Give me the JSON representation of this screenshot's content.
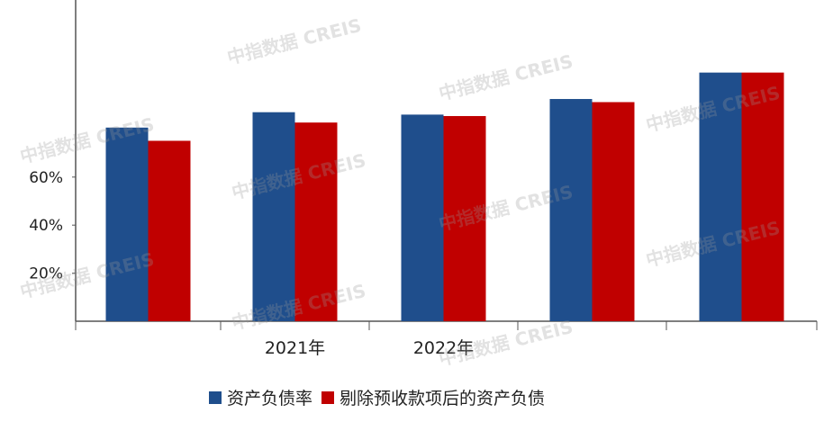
{
  "chart_data": {
    "type": "bar",
    "categories": [
      "",
      "2021年",
      "2022年",
      "",
      ""
    ],
    "series": [
      {
        "name": "资产负债率",
        "color": "#1f4e8c",
        "values": [
          80.6,
          87.0,
          86.0,
          92.5,
          103.5
        ]
      },
      {
        "name": "剔除预收款项后的资产负债",
        "color": "#c00000",
        "values": [
          75.1,
          82.7,
          85.4,
          91.2,
          103.5
        ]
      }
    ],
    "y_ticks": [
      "20%",
      "40%",
      "60%"
    ],
    "y_tick_values": [
      20,
      40,
      60
    ],
    "ylim": [
      0,
      130
    ],
    "grid": false,
    "legend_position": "bottom"
  },
  "watermark_text": "中指数据 CREIS"
}
